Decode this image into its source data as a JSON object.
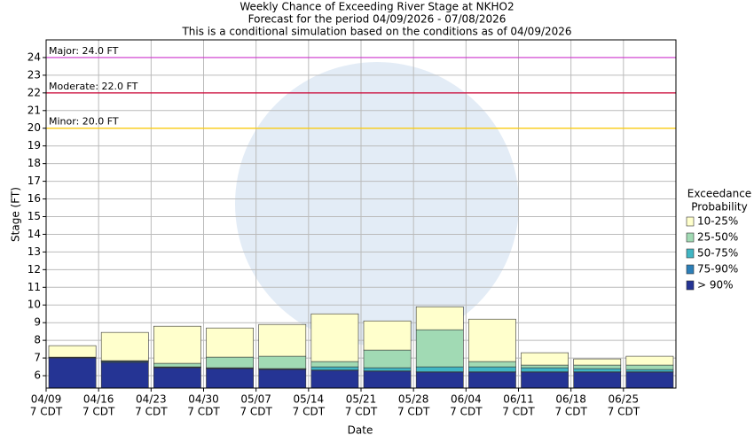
{
  "chart_data": {
    "type": "floating_bar",
    "title": "Weekly Chance of Exceeding River Stage at NKHO2",
    "subtitle": "Forecast for the period 04/09/2026 - 07/08/2026",
    "note": "This is a conditional simulation based on the conditions as of 04/09/2026",
    "x_label": "Date",
    "y_label": "Stage (FT)",
    "legend_title": [
      "Exceedance",
      "Probability"
    ],
    "categories": [
      [
        "04/09",
        "7 CDT"
      ],
      [
        "04/16",
        "7 CDT"
      ],
      [
        "04/23",
        "7 CDT"
      ],
      [
        "04/30",
        "7 CDT"
      ],
      [
        "05/07",
        "7 CDT"
      ],
      [
        "05/14",
        "7 CDT"
      ],
      [
        "05/21",
        "7 CDT"
      ],
      [
        "05/28",
        "7 CDT"
      ],
      [
        "06/04",
        "7 CDT"
      ],
      [
        "06/11",
        "7 CDT"
      ],
      [
        "06/18",
        "7 CDT"
      ],
      [
        "06/25",
        "7 CDT"
      ]
    ],
    "series": [
      {
        "name": "> 90%",
        "color": "#253494",
        "values": [
          7.0,
          6.75,
          6.45,
          6.4,
          6.35,
          6.3,
          6.25,
          6.2,
          6.2,
          6.2,
          6.2,
          6.2
        ]
      },
      {
        "name": "75-90%",
        "color": "#2c7fb8",
        "values": [
          7.02,
          6.8,
          6.47,
          6.42,
          6.37,
          6.32,
          6.27,
          6.22,
          6.22,
          6.22,
          6.22,
          6.22
        ]
      },
      {
        "name": "50-75%",
        "color": "#41b6c4",
        "values": [
          7.03,
          6.82,
          6.5,
          6.45,
          6.4,
          6.5,
          6.45,
          6.5,
          6.5,
          6.45,
          6.4,
          6.35
        ]
      },
      {
        "name": "25-50%",
        "color": "#a1dab4",
        "values": [
          7.05,
          6.85,
          6.7,
          7.05,
          7.1,
          6.8,
          7.45,
          8.6,
          6.8,
          6.6,
          6.6,
          6.6
        ]
      },
      {
        "name": "10-25%",
        "color": "#ffffcc",
        "values": [
          7.7,
          8.45,
          8.8,
          8.7,
          8.9,
          9.5,
          9.1,
          9.9,
          9.2,
          7.3,
          6.95,
          7.1
        ]
      }
    ],
    "thresholds": [
      {
        "label": "Major: 24.0 FT",
        "value": 24,
        "color": "#cc33cc"
      },
      {
        "label": "Moderate: 22.0 FT",
        "value": 22,
        "color": "#cc0033"
      },
      {
        "label": "Minor: 20.0 FT",
        "value": 20,
        "color": "#ffcc00"
      }
    ],
    "ylim": [
      5.3,
      25
    ],
    "yticks": [
      6,
      7,
      8,
      9,
      10,
      11,
      12,
      13,
      14,
      15,
      16,
      17,
      18,
      19,
      20,
      21,
      22,
      23,
      24
    ],
    "grid": true
  }
}
